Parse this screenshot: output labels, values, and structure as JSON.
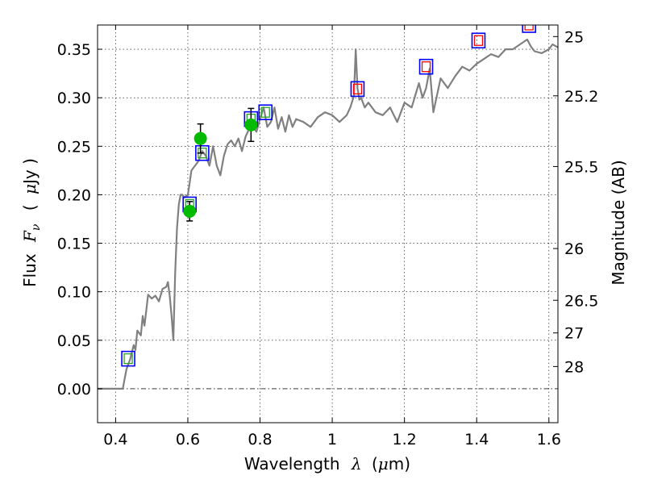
{
  "chart_data": {
    "type": "scatter",
    "title": "",
    "xlabel": "Wavelength",
    "xlabel_symbol": "λ",
    "xlabel_unit_prefix": "(",
    "xlabel_unit_mu": "μ",
    "xlabel_unit_suffix": "m)",
    "ylabel": "Flux",
    "ylabel_symbol": "F",
    "ylabel_subscript": "ν",
    "ylabel_unit_open": "(",
    "ylabel_unit_mu": "μ",
    "ylabel_unit_rest": "Jy )",
    "y2label": "Magnitude (AB)",
    "xlim": [
      0.35,
      1.625
    ],
    "ylim": [
      -0.035,
      0.375
    ],
    "grid": true,
    "xticks": [
      0.4,
      0.6,
      0.8,
      1.0,
      1.2,
      1.4,
      1.6
    ],
    "xtick_labels": [
      "0.4",
      "0.6",
      "0.8",
      "1",
      "1.2",
      "1.4",
      "1.6"
    ],
    "yticks": [
      0.0,
      0.05,
      0.1,
      0.15,
      0.2,
      0.25,
      0.3,
      0.35
    ],
    "ytick_labels": [
      "0.00",
      "0.05",
      "0.10",
      "0.15",
      "0.20",
      "0.25",
      "0.30",
      "0.35"
    ],
    "y2ticks": [
      {
        "label": "25",
        "mag": 25.0
      },
      {
        "label": "25.2",
        "mag": 25.2
      },
      {
        "label": "25.5",
        "mag": 25.5
      },
      {
        "label": "26",
        "mag": 26.0
      },
      {
        "label": "26.5",
        "mag": 26.5
      },
      {
        "label": "27",
        "mag": 27.0
      },
      {
        "label": "28",
        "mag": 28.0
      }
    ],
    "colors": {
      "spectrum": "#808080",
      "observed": "#00bb00",
      "errorbar": "#000000",
      "model_box": "#0000ff",
      "inner_green": "#2ca02c",
      "inner_red": "#ff0000",
      "zero_line": "#404040"
    },
    "spectrum": {
      "x": [
        0.35,
        0.42,
        0.43,
        0.44,
        0.45,
        0.455,
        0.46,
        0.47,
        0.475,
        0.48,
        0.49,
        0.5,
        0.51,
        0.52,
        0.53,
        0.54,
        0.545,
        0.55,
        0.555,
        0.56,
        0.565,
        0.57,
        0.575,
        0.58,
        0.585,
        0.59,
        0.6,
        0.605,
        0.61,
        0.62,
        0.63,
        0.64,
        0.65,
        0.66,
        0.67,
        0.68,
        0.69,
        0.7,
        0.71,
        0.72,
        0.73,
        0.74,
        0.75,
        0.76,
        0.77,
        0.78,
        0.79,
        0.8,
        0.81,
        0.82,
        0.83,
        0.84,
        0.85,
        0.86,
        0.87,
        0.88,
        0.89,
        0.9,
        0.92,
        0.94,
        0.96,
        0.98,
        1.0,
        1.02,
        1.04,
        1.05,
        1.06,
        1.065,
        1.07,
        1.075,
        1.08,
        1.09,
        1.1,
        1.12,
        1.14,
        1.16,
        1.18,
        1.2,
        1.22,
        1.24,
        1.25,
        1.26,
        1.27,
        1.28,
        1.3,
        1.32,
        1.34,
        1.36,
        1.38,
        1.4,
        1.42,
        1.44,
        1.46,
        1.48,
        1.5,
        1.52,
        1.54,
        1.55,
        1.56,
        1.58,
        1.6,
        1.61,
        1.625
      ],
      "y": [
        0.0,
        0.0,
        0.02,
        0.03,
        0.045,
        0.04,
        0.06,
        0.055,
        0.075,
        0.065,
        0.097,
        0.093,
        0.096,
        0.09,
        0.103,
        0.105,
        0.11,
        0.095,
        0.075,
        0.05,
        0.12,
        0.165,
        0.19,
        0.2,
        0.2,
        0.197,
        0.2,
        0.212,
        0.225,
        0.23,
        0.235,
        0.245,
        0.24,
        0.23,
        0.25,
        0.23,
        0.22,
        0.24,
        0.252,
        0.256,
        0.25,
        0.258,
        0.245,
        0.26,
        0.268,
        0.27,
        0.265,
        0.278,
        0.29,
        0.27,
        0.275,
        0.29,
        0.268,
        0.28,
        0.265,
        0.282,
        0.27,
        0.278,
        0.275,
        0.27,
        0.28,
        0.285,
        0.282,
        0.275,
        0.282,
        0.29,
        0.302,
        0.35,
        0.31,
        0.298,
        0.3,
        0.29,
        0.295,
        0.285,
        0.282,
        0.29,
        0.275,
        0.295,
        0.29,
        0.315,
        0.3,
        0.31,
        0.33,
        0.285,
        0.32,
        0.31,
        0.322,
        0.332,
        0.328,
        0.335,
        0.34,
        0.345,
        0.342,
        0.35,
        0.35,
        0.355,
        0.36,
        0.353,
        0.348,
        0.346,
        0.35,
        0.355,
        0.352
      ]
    },
    "observed": [
      {
        "x": 0.605,
        "y": 0.183,
        "err": 0.01
      },
      {
        "x": 0.635,
        "y": 0.258,
        "err": 0.015
      },
      {
        "x": 0.775,
        "y": 0.272,
        "err": 0.017
      }
    ],
    "model_green": [
      {
        "x": 0.435,
        "y": 0.031
      },
      {
        "x": 0.605,
        "y": 0.19
      },
      {
        "x": 0.64,
        "y": 0.243
      },
      {
        "x": 0.775,
        "y": 0.278
      },
      {
        "x": 0.815,
        "y": 0.285
      }
    ],
    "model_red": [
      {
        "x": 1.07,
        "y": 0.309
      },
      {
        "x": 1.26,
        "y": 0.332
      },
      {
        "x": 1.405,
        "y": 0.359
      },
      {
        "x": 1.545,
        "y": 0.375
      }
    ]
  }
}
